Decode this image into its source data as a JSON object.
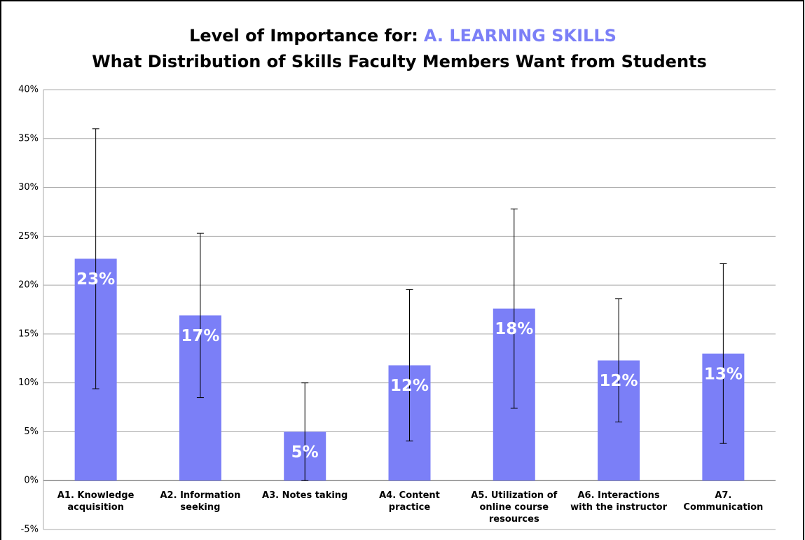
{
  "chart_data": {
    "type": "bar",
    "title": "Level of Importance for:",
    "title_highlight": "A. LEARNING SKILLS",
    "title_highlight_color": "#7b7ff7",
    "subtitle": "What Distribution of Skills Faculty Members Want from Students",
    "categories": [
      "A1. Knowledge acquisition",
      "A2. Information seeking",
      "A3. Notes taking",
      "A4. Content practice",
      "A5. Utilization of online course resources",
      "A6. Interactions with the instructor",
      "A7. Communication"
    ],
    "values": [
      22.7,
      16.9,
      5.0,
      11.8,
      17.6,
      12.3,
      13.0
    ],
    "value_labels": [
      "23%",
      "17%",
      "5%",
      "12%",
      "18%",
      "12%",
      "13%"
    ],
    "errors": [
      13.3,
      8.4,
      5.0,
      7.75,
      10.2,
      6.3,
      9.2
    ],
    "color": "#7b7ff7",
    "ylim": [
      -5,
      40
    ],
    "yticks": [
      {
        "value": -5,
        "label": "-5%"
      },
      {
        "value": 0,
        "label": "0%"
      },
      {
        "value": 5,
        "label": "5%"
      },
      {
        "value": 10,
        "label": "10%"
      },
      {
        "value": 15,
        "label": "15%"
      },
      {
        "value": 20,
        "label": "20%"
      },
      {
        "value": 25,
        "label": "25%"
      },
      {
        "value": 30,
        "label": "30%"
      },
      {
        "value": 35,
        "label": "35%"
      },
      {
        "value": 40,
        "label": "40%"
      }
    ],
    "grid": true
  }
}
